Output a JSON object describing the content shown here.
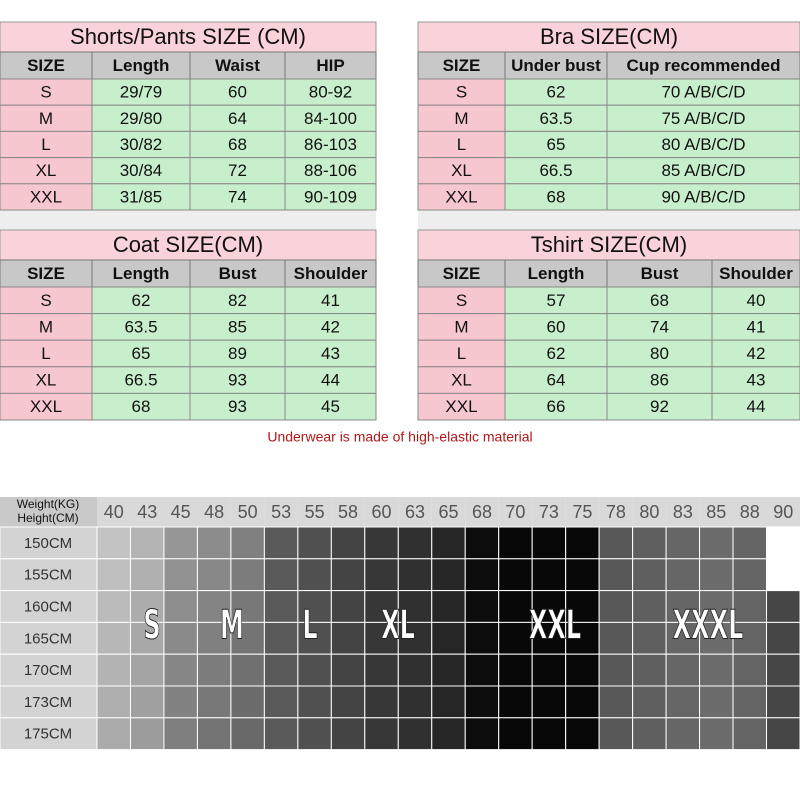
{
  "tables": [
    {
      "title": "Shorts/Pants SIZE (CM)",
      "columns": [
        "SIZE",
        "Length",
        "Waist",
        "HIP"
      ],
      "rows": [
        [
          "S",
          "29/79",
          "60",
          "80-92"
        ],
        [
          "M",
          "29/80",
          "64",
          "84-100"
        ],
        [
          "L",
          "30/82",
          "68",
          "86-103"
        ],
        [
          "XL",
          "30/84",
          "72",
          "88-106"
        ],
        [
          "XXL",
          "31/85",
          "74",
          "90-109"
        ]
      ]
    },
    {
      "title": "Bra SIZE(CM)",
      "columns": [
        "SIZE",
        "Under bust",
        "Cup recommended"
      ],
      "rows": [
        [
          "S",
          "62",
          "70  A/B/C/D"
        ],
        [
          "M",
          "63.5",
          "75  A/B/C/D"
        ],
        [
          "L",
          "65",
          "80  A/B/C/D"
        ],
        [
          "XL",
          "66.5",
          "85  A/B/C/D"
        ],
        [
          "XXL",
          "68",
          "90  A/B/C/D"
        ]
      ]
    },
    {
      "title": "Coat SIZE(CM)",
      "columns": [
        "SIZE",
        "Length",
        "Bust",
        "Shoulder"
      ],
      "rows": [
        [
          "S",
          "62",
          "82",
          "41"
        ],
        [
          "M",
          "63.5",
          "85",
          "42"
        ],
        [
          "L",
          "65",
          "89",
          "43"
        ],
        [
          "XL",
          "66.5",
          "93",
          "44"
        ],
        [
          "XXL",
          "68",
          "93",
          "45"
        ]
      ]
    },
    {
      "title": "Tshirt SIZE(CM)",
      "columns": [
        "SIZE",
        "Length",
        "Bust",
        "Shoulder"
      ],
      "rows": [
        [
          "S",
          "57",
          "68",
          "40"
        ],
        [
          "M",
          "60",
          "74",
          "41"
        ],
        [
          "L",
          "62",
          "80",
          "42"
        ],
        [
          "XL",
          "64",
          "86",
          "43"
        ],
        [
          "XXL",
          "66",
          "92",
          "44"
        ]
      ]
    }
  ],
  "note": "Underwear is made of high-elastic material",
  "grid": {
    "corner": [
      "Weight(KG)",
      "Height(CM)"
    ],
    "weights": [
      40,
      43,
      45,
      48,
      50,
      53,
      55,
      58,
      60,
      63,
      65,
      68,
      70,
      73,
      75,
      78,
      80,
      83,
      85,
      88,
      90
    ],
    "heights": [
      "150CM",
      "155CM",
      "160CM",
      "165CM",
      "170CM",
      "173CM",
      "175CM"
    ],
    "sizes": [
      "S",
      "M",
      "L",
      "XL",
      "XXL",
      "XXXL"
    ]
  }
}
